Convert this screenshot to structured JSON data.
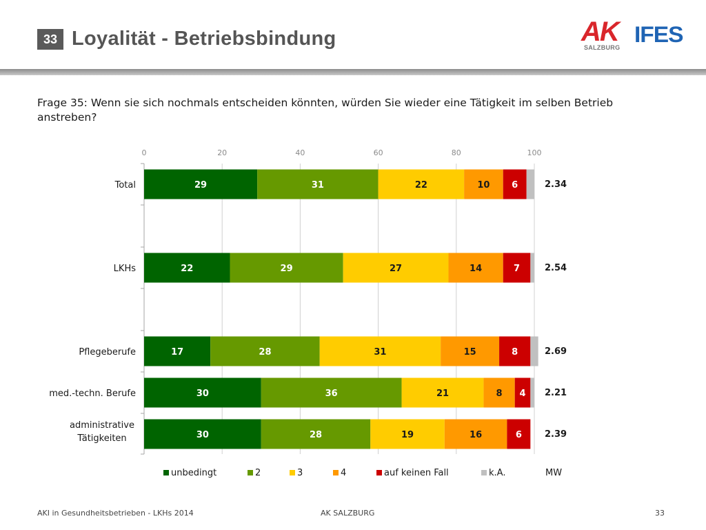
{
  "slide": {
    "number": "33",
    "title": "Loyalität - Betriebsbindung",
    "question": "Frage 35: Wenn sie sich nochmals entscheiden könnten, würden Sie wieder eine Tätigkeit im selben Betrieb anstreben?"
  },
  "logos": {
    "ak_text": "AK",
    "ak_sub": "SALZBURG",
    "ifes_text": "IFES"
  },
  "footer": {
    "left": "AKI in Gesundheitsbetrieben - LKHs 2014",
    "center": "AK SALZBURG",
    "page": "33"
  },
  "chart_data": {
    "type": "bar",
    "orientation": "horizontal-stacked",
    "xlim": [
      0,
      100
    ],
    "xticks": [
      0,
      20,
      40,
      60,
      80,
      100
    ],
    "grid": true,
    "legend_position": "bottom",
    "colors": {
      "unbedingt": "#006400",
      "2": "#669900",
      "3": "#ffcc00",
      "4": "#ff9900",
      "auf keinen Fall": "#cc0000",
      "k.A.": "#c0c0c0"
    },
    "categories": [
      "Total",
      "LKHs",
      "Pflegeberufe",
      "med.-techn. Berufe",
      "administrative Tätigkeiten"
    ],
    "series": [
      {
        "name": "unbedingt",
        "values": [
          29,
          22,
          17,
          30,
          30
        ]
      },
      {
        "name": "2",
        "values": [
          31,
          29,
          28,
          36,
          28
        ]
      },
      {
        "name": "3",
        "values": [
          22,
          27,
          31,
          21,
          19
        ]
      },
      {
        "name": "4",
        "values": [
          10,
          14,
          15,
          8,
          16
        ]
      },
      {
        "name": "auf keinen Fall",
        "values": [
          6,
          7,
          8,
          4,
          6
        ]
      },
      {
        "name": "k.A.",
        "values": [
          2,
          1,
          2,
          1,
          0
        ]
      }
    ],
    "mw_label": "MW",
    "mw_values": [
      "2.34",
      "2.54",
      "2.69",
      "2.21",
      "2.39"
    ]
  }
}
